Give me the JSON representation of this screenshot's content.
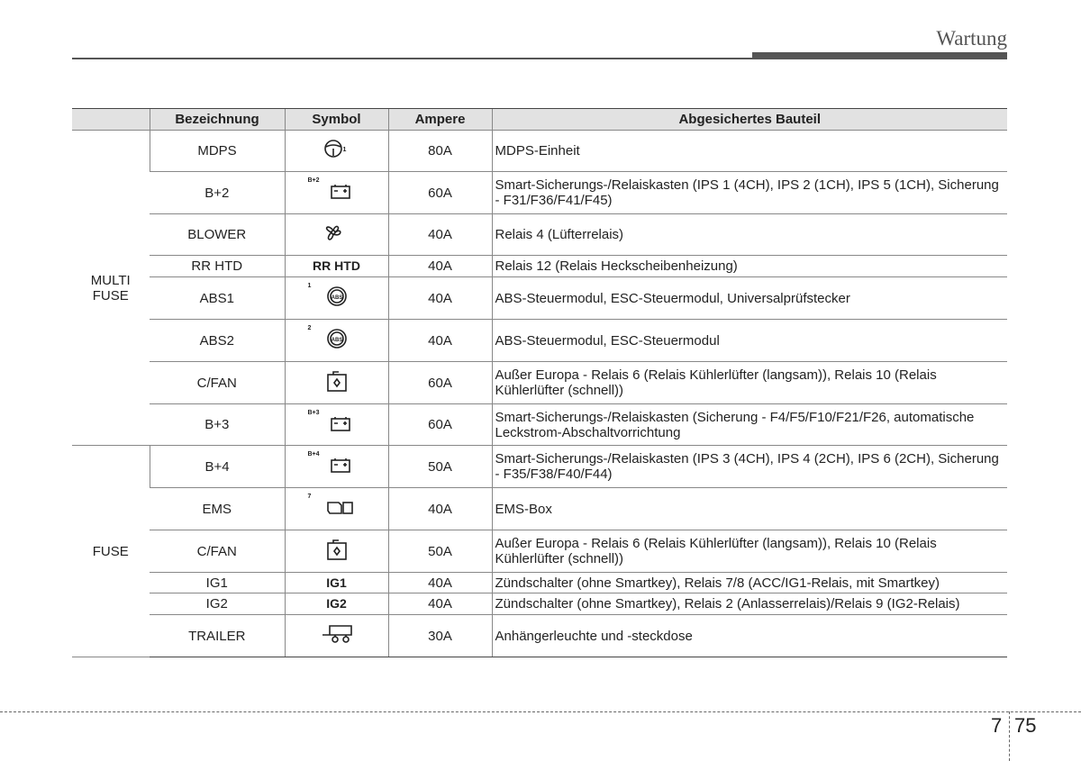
{
  "header": {
    "title": "Wartung"
  },
  "table": {
    "columns": [
      "Bezeichnung",
      "Symbol",
      "Ampere",
      "Abgesichertes Bauteil"
    ],
    "groups": [
      {
        "label": "MULTI FUSE",
        "rows": [
          {
            "name": "MDPS",
            "symbol_label": "1",
            "ampere": "80A",
            "part": "MDPS-Einheit"
          },
          {
            "name": "B+2",
            "symbol_label": "B+2",
            "ampere": "60A",
            "part": "Smart-Sicherungs-/Relaiskasten (IPS 1 (4CH), IPS 2 (1CH), IPS 5 (1CH), Sicherung - F31/F36/F41/F45)"
          },
          {
            "name": "BLOWER",
            "ampere": "40A",
            "part": "Relais 4 (Lüfterrelais)"
          },
          {
            "name": "RR HTD",
            "symbol_text": "RR HTD",
            "ampere": "40A",
            "part": "Relais 12 (Relais Heckscheibenheizung)"
          },
          {
            "name": "ABS1",
            "symbol_label": "1",
            "ampere": "40A",
            "part": "ABS-Steuermodul, ESC-Steuermodul, Universalprüfstecker"
          },
          {
            "name": "ABS2",
            "symbol_label": "2",
            "ampere": "40A",
            "part": "ABS-Steuermodul, ESC-Steuermodul"
          },
          {
            "name": "C/FAN",
            "ampere": "60A",
            "part": "Außer Europa - Relais 6 (Relais Kühlerlüfter (langsam)), Relais 10 (Relais Kühlerlüfter (schnell))"
          },
          {
            "name": "B+3",
            "symbol_label": "B+3",
            "ampere": "60A",
            "part": "Smart-Sicherungs-/Relaiskasten (Sicherung - F4/F5/F10/F21/F26, automatische Leckstrom-Abschaltvorrichtung"
          }
        ]
      },
      {
        "label": "FUSE",
        "rows": [
          {
            "name": "B+4",
            "symbol_label": "B+4",
            "ampere": "50A",
            "part": "Smart-Sicherungs-/Relaiskasten (IPS 3 (4CH), IPS 4 (2CH), IPS 6 (2CH), Sicherung - F35/F38/F40/F44)"
          },
          {
            "name": "EMS",
            "symbol_label": "7",
            "ampere": "40A",
            "part": "EMS-Box"
          },
          {
            "name": "C/FAN",
            "ampere": "50A",
            "part": "Außer Europa - Relais 6 (Relais Kühlerlüfter (langsam)), Relais 10 (Relais Kühlerlüfter (schnell))"
          },
          {
            "name": "IG1",
            "symbol_text": "IG1",
            "ampere": "40A",
            "part": "Zündschalter (ohne Smartkey), Relais 7/8 (ACC/IG1-Relais, mit Smartkey)"
          },
          {
            "name": "IG2",
            "symbol_text": "IG2",
            "ampere": "40A",
            "part": "Zündschalter (ohne Smartkey), Relais 2 (Anlasserrelais)/Relais 9 (IG2-Relais)"
          },
          {
            "name": "TRAILER",
            "ampere": "30A",
            "part": "Anhängerleuchte und -steckdose"
          }
        ]
      }
    ]
  },
  "footer": {
    "chapter": "7",
    "page": "75"
  }
}
